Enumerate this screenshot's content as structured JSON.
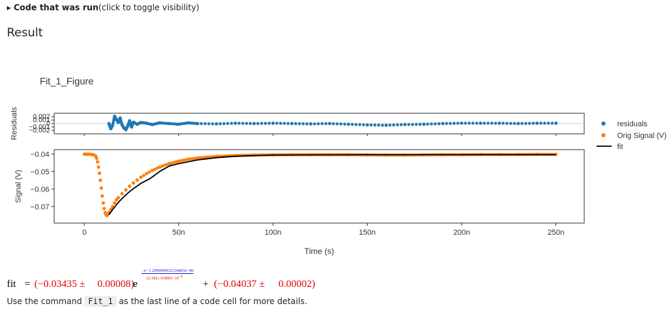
{
  "header": {
    "toggle_arrow": "▸",
    "toggle_bold": "Code that was run",
    "toggle_rest": "(click to toggle visibility)",
    "result_title": "Result"
  },
  "figure_title": "Fit_1_Figure",
  "formula": {
    "lhs": "fit",
    "eq": " = ",
    "a_val": "(−0.03435 ± ",
    "a_err": "0.00008)",
    "e": "e",
    "exp_num": "−x+ 1.29999996323348​03e−08",
    "exp_den": "(2.182± 0.009)× 10",
    "exp_den_pow": "−8",
    "plus": " + ",
    "c_val": "(−0.04037 ± ",
    "c_err": "0.00002)"
  },
  "note": {
    "pre": "Use the command ",
    "code": "Fit_1",
    "post": " as the last line of a code cell for more details."
  },
  "colors": {
    "residuals": "#1f77b4",
    "signal": "#ff7f0e",
    "fit": "#000000"
  },
  "chart_data": [
    {
      "type": "scatter",
      "ylabel": "Residuals",
      "yticks": [
        "0.002",
        "0.001",
        "0",
        "−0.001",
        "−0.002"
      ],
      "ylim": [
        -0.003,
        0.003
      ],
      "xlim": [
        -1.6e-08,
        2.65e-07
      ],
      "legend": "right",
      "series": [
        {
          "name": "residuals",
          "x": [
            1.3e-08,
            1.4e-08,
            1.5e-08,
            1.6e-08,
            1.7e-08,
            1.8e-08,
            1.9e-08,
            2e-08,
            2.1e-08,
            2.2e-08,
            2.3e-08,
            2.4e-08,
            2.5e-08,
            2.6e-08,
            2.8e-08,
            3e-08,
            3.3e-08,
            3.6e-08,
            4e-08,
            4.5e-08,
            5e-08,
            5.5e-08,
            6e-08,
            7e-08,
            8e-08,
            9e-08,
            1e-07,
            1.1e-07,
            1.2e-07,
            1.3e-07,
            1.4e-07,
            1.5e-07,
            1.6e-07,
            1.7e-07,
            1.8e-07,
            1.9e-07,
            2e-07,
            2.1e-07,
            2.2e-07,
            2.3e-07,
            2.4e-07,
            2.5e-07
          ],
          "y": [
            0.0,
            -0.0015,
            -0.0005,
            0.0021,
            0.0012,
            0.0003,
            0.0016,
            -0.0004,
            -0.0013,
            -0.0018,
            -0.0007,
            0.0008,
            -0.001,
            0.0004,
            -0.0002,
            0.0003,
            0.0001,
            -0.0003,
            0.0002,
            0.0,
            -0.0002,
            0.0002,
            0.0,
            -0.0001,
            0.0001,
            0.0,
            0.0001,
            0.0,
            -0.0001,
            0.0,
            -0.0002,
            -0.0004,
            -0.0005,
            -0.0003,
            -0.0002,
            0.0,
            0.0001,
            0.0001,
            0.0001,
            0.0,
            0.0001,
            0.0001
          ]
        }
      ]
    },
    {
      "type": "scatter",
      "xlabel": "Time (s)",
      "ylabel": "Signal (V)",
      "xticks": [
        "0",
        "50n",
        "100n",
        "150n",
        "200n",
        "250n"
      ],
      "xtick_values": [
        0,
        5e-08,
        1e-07,
        1.5e-07,
        2e-07,
        2.5e-07
      ],
      "yticks": [
        "−0.04",
        "−0.05",
        "−0.06",
        "−0.07"
      ],
      "ytick_values": [
        -0.04,
        -0.05,
        -0.06,
        -0.07
      ],
      "ylim": [
        -0.0795,
        -0.0375
      ],
      "xlim": [
        -1.6e-08,
        2.65e-07
      ],
      "legend": "right",
      "series": [
        {
          "name": "Orig Signal (V)",
          "x": [
            0,
            1e-09,
            2e-09,
            3e-09,
            4e-09,
            5e-09,
            6e-09,
            6.5e-09,
            7e-09,
            7.5e-09,
            8e-09,
            8.5e-09,
            9e-09,
            9.5e-09,
            1e-08,
            1.05e-08,
            1.1e-08,
            1.15e-08,
            1.2e-08,
            1.25e-08,
            1.3e-08,
            1.4e-08,
            1.5e-08,
            1.6e-08,
            1.7e-08,
            1.8e-08,
            2e-08,
            2.2e-08,
            2.4e-08,
            2.6e-08,
            2.8e-08,
            3e-08,
            3.3e-08,
            3.6e-08,
            4e-08,
            4.5e-08,
            5e-08,
            5.5e-08,
            6e-08,
            6.5e-08,
            7e-08,
            8e-08,
            9e-08,
            1e-07,
            1.1e-07,
            1.2e-07,
            1.3e-07,
            1.4e-07,
            1.5e-07,
            1.6e-07,
            1.7e-07,
            1.8e-07,
            1.9e-07,
            2e-07,
            2.1e-07,
            2.2e-07,
            2.3e-07,
            2.4e-07,
            2.5e-07
          ],
          "y": [
            -0.0401,
            -0.0401,
            -0.0401,
            -0.0402,
            -0.0403,
            -0.0405,
            -0.0412,
            -0.0425,
            -0.0445,
            -0.0475,
            -0.051,
            -0.055,
            -0.0595,
            -0.064,
            -0.068,
            -0.0712,
            -0.0735,
            -0.0748,
            -0.0752,
            -0.0745,
            -0.0735,
            -0.0718,
            -0.0702,
            -0.068,
            -0.0662,
            -0.065,
            -0.0627,
            -0.0605,
            -0.0584,
            -0.0566,
            -0.0549,
            -0.0533,
            -0.0512,
            -0.0494,
            -0.0474,
            -0.0455,
            -0.0441,
            -0.043,
            -0.0423,
            -0.0418,
            -0.0414,
            -0.0409,
            -0.0406,
            -0.0405,
            -0.0404,
            -0.0404,
            -0.0404,
            -0.0404,
            -0.0405,
            -0.0406,
            -0.0406,
            -0.0405,
            -0.0404,
            -0.0404,
            -0.0403,
            -0.0403,
            -0.0403,
            -0.0402,
            -0.0402
          ]
        },
        {
          "name": "fit",
          "x": [
            1.3e-08,
            1.5e-08,
            1.75e-08,
            2e-08,
            2.25e-08,
            2.5e-08,
            3e-08,
            3.5e-08,
            4e-08,
            4.5e-08,
            5e-08,
            6e-08,
            7e-08,
            8e-08,
            9e-08,
            1e-07,
            1.2e-07,
            1.5e-07,
            2e-07,
            2.5e-07
          ],
          "y": [
            -0.0747,
            -0.0718,
            -0.0683,
            -0.0654,
            -0.0629,
            -0.0606,
            -0.0568,
            -0.0539,
            -0.05,
            -0.0469,
            -0.0455,
            -0.0434,
            -0.0421,
            -0.0413,
            -0.0409,
            -0.0406,
            -0.0405,
            -0.0404,
            -0.0404,
            -0.0404
          ]
        }
      ]
    }
  ]
}
